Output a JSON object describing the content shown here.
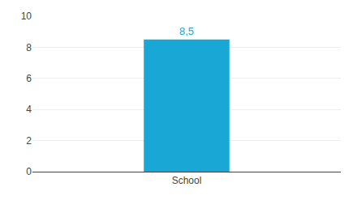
{
  "chart_data": {
    "type": "bar",
    "categories": [
      "School"
    ],
    "values": [
      8.5
    ],
    "value_labels": [
      "8,5"
    ],
    "data_labels": true,
    "color": "#19a8d6",
    "ylim": [
      0,
      10
    ],
    "yticks": [
      0,
      2,
      4,
      6,
      8,
      10
    ],
    "grid": true
  }
}
